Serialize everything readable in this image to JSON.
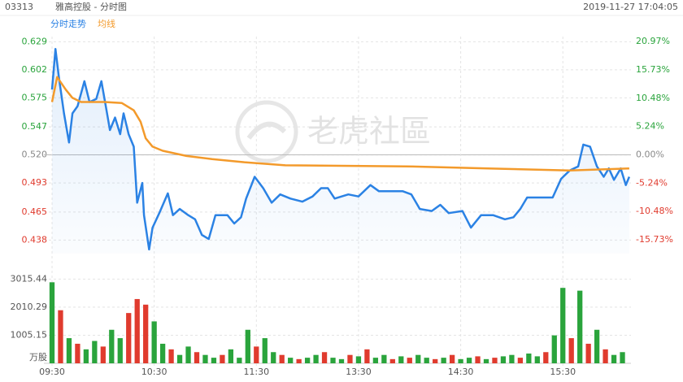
{
  "header": {
    "code": "03313",
    "name": "雅高控股 - 分时图",
    "time": "2019-11-27 17:04:05"
  },
  "watermark": "老虎社區",
  "chart_data": [
    {
      "type": "line",
      "grid": true,
      "up_label_color": "#2aa43c",
      "down_label_color": "#e03b2e",
      "flat_label_color": "#888888",
      "xlim": [
        0,
        340
      ],
      "xticks": [
        {
          "value": 0,
          "label": "09:30"
        },
        {
          "value": 60,
          "label": "10:30"
        },
        {
          "value": 120,
          "label": "11:30"
        },
        {
          "value": 180,
          "label": "13:30"
        },
        {
          "value": 240,
          "label": "14:30"
        },
        {
          "value": 300,
          "label": "15:30"
        }
      ],
      "ylim": [
        0.425,
        0.634
      ],
      "yticks": [
        0.629,
        0.602,
        0.575,
        0.547,
        {
          "value": 0.52,
          "label": "0.520"
        },
        0.493,
        0.465,
        0.438
      ],
      "y2lim": [
        -18.3,
        21.9
      ],
      "y2ticks": [
        {
          "value": 20.97,
          "label": "20.97%"
        },
        {
          "value": 15.73,
          "label": "15.73%"
        },
        {
          "value": 10.48,
          "label": "10.48%"
        },
        {
          "value": 5.24,
          "label": "5.24%"
        },
        {
          "value": 0,
          "label": "0.00%"
        },
        {
          "value": -5.24,
          "label": "-5.24%"
        },
        {
          "value": -10.48,
          "label": "-10.48%"
        },
        {
          "value": -15.73,
          "label": "-15.73%"
        }
      ],
      "series": [
        {
          "name": "分时走势",
          "color": "#2b82e4",
          "area": true,
          "x": [
            0,
            2,
            4,
            7,
            10,
            12,
            15,
            19,
            22,
            26,
            29,
            32,
            34,
            37,
            40,
            42,
            45,
            48,
            50,
            53,
            54,
            57,
            59,
            63,
            68,
            71,
            75,
            80,
            84,
            88,
            92,
            96,
            103,
            107,
            111,
            114,
            119,
            124,
            129,
            134,
            140,
            147,
            153,
            158,
            162,
            166,
            174,
            180,
            187,
            192,
            199,
            206,
            211,
            216,
            223,
            228,
            233,
            241,
            246,
            252,
            259,
            266,
            271,
            275,
            279,
            287,
            294,
            299,
            304,
            309,
            312,
            316,
            320,
            324,
            327,
            330,
            334,
            337,
            339
          ],
          "values": [
            0.583,
            0.622,
            0.595,
            0.56,
            0.532,
            0.56,
            0.567,
            0.591,
            0.571,
            0.574,
            0.591,
            0.563,
            0.544,
            0.556,
            0.54,
            0.56,
            0.54,
            0.528,
            0.474,
            0.493,
            0.462,
            0.429,
            0.45,
            0.464,
            0.483,
            0.462,
            0.468,
            0.462,
            0.458,
            0.443,
            0.439,
            0.462,
            0.462,
            0.454,
            0.46,
            0.478,
            0.499,
            0.488,
            0.474,
            0.482,
            0.478,
            0.475,
            0.48,
            0.488,
            0.488,
            0.478,
            0.482,
            0.48,
            0.491,
            0.485,
            0.485,
            0.485,
            0.482,
            0.468,
            0.466,
            0.472,
            0.464,
            0.466,
            0.45,
            0.462,
            0.462,
            0.458,
            0.46,
            0.468,
            0.479,
            0.479,
            0.479,
            0.497,
            0.505,
            0.509,
            0.53,
            0.528,
            0.509,
            0.499,
            0.507,
            0.496,
            0.507,
            0.491,
            0.499
          ]
        },
        {
          "name": "均线",
          "color": "#f39a2b",
          "area": false,
          "x": [
            0,
            3,
            8,
            12,
            17,
            31,
            41,
            48,
            52,
            55,
            59,
            65,
            79,
            94,
            113,
            137,
            208,
            256,
            304,
            339
          ],
          "values": [
            0.571,
            0.595,
            0.583,
            0.575,
            0.571,
            0.571,
            0.57,
            0.563,
            0.552,
            0.536,
            0.528,
            0.524,
            0.519,
            0.516,
            0.513,
            0.51,
            0.509,
            0.507,
            0.505,
            0.507
          ]
        }
      ]
    },
    {
      "type": "bar",
      "unit": "万股",
      "grid": true,
      "xlim": [
        0,
        340
      ],
      "ylim": [
        0,
        3200
      ],
      "yticks": [
        3015.44,
        2010.29,
        1005.15
      ],
      "x": [
        0,
        5,
        10,
        15,
        20,
        25,
        30,
        35,
        40,
        45,
        50,
        55,
        60,
        65,
        70,
        75,
        80,
        85,
        90,
        95,
        100,
        105,
        110,
        115,
        120,
        125,
        130,
        135,
        140,
        145,
        150,
        155,
        160,
        165,
        170,
        175,
        180,
        185,
        190,
        195,
        200,
        205,
        210,
        215,
        220,
        225,
        230,
        235,
        240,
        245,
        250,
        255,
        260,
        265,
        270,
        275,
        280,
        285,
        290,
        295,
        300,
        305,
        310,
        315,
        320,
        325,
        330,
        335
      ],
      "values": [
        2900,
        1900,
        900,
        700,
        500,
        800,
        600,
        1200,
        900,
        1800,
        2300,
        2100,
        1500,
        700,
        500,
        300,
        600,
        400,
        300,
        200,
        300,
        500,
        200,
        1200,
        600,
        900,
        400,
        300,
        200,
        150,
        200,
        300,
        400,
        200,
        150,
        300,
        250,
        500,
        200,
        300,
        150,
        250,
        200,
        300,
        200,
        150,
        200,
        300,
        150,
        200,
        250,
        150,
        200,
        250,
        300,
        200,
        350,
        250,
        400,
        1000,
        2700,
        900,
        2600,
        700,
        1200,
        500,
        300,
        400
      ],
      "colors": [
        "#2aa43c",
        "#e03b2e",
        "#2aa43c",
        "#e03b2e",
        "#2aa43c",
        "#2aa43c",
        "#e03b2e",
        "#2aa43c",
        "#2aa43c",
        "#e03b2e",
        "#e03b2e",
        "#e03b2e",
        "#2aa43c",
        "#2aa43c",
        "#e03b2e",
        "#2aa43c",
        "#2aa43c",
        "#e03b2e",
        "#2aa43c",
        "#2aa43c",
        "#e03b2e",
        "#2aa43c",
        "#2aa43c",
        "#2aa43c",
        "#e03b2e",
        "#2aa43c",
        "#2aa43c",
        "#e03b2e",
        "#2aa43c",
        "#e03b2e",
        "#2aa43c",
        "#2aa43c",
        "#e03b2e",
        "#2aa43c",
        "#2aa43c",
        "#e03b2e",
        "#2aa43c",
        "#e03b2e",
        "#2aa43c",
        "#2aa43c",
        "#e03b2e",
        "#2aa43c",
        "#e03b2e",
        "#2aa43c",
        "#2aa43c",
        "#e03b2e",
        "#2aa43c",
        "#e03b2e",
        "#2aa43c",
        "#2aa43c",
        "#e03b2e",
        "#2aa43c",
        "#e03b2e",
        "#2aa43c",
        "#2aa43c",
        "#e03b2e",
        "#2aa43c",
        "#2aa43c",
        "#e03b2e",
        "#2aa43c",
        "#2aa43c",
        "#e03b2e",
        "#2aa43c",
        "#e03b2e",
        "#2aa43c",
        "#e03b2e",
        "#2aa43c",
        "#2aa43c"
      ]
    }
  ]
}
